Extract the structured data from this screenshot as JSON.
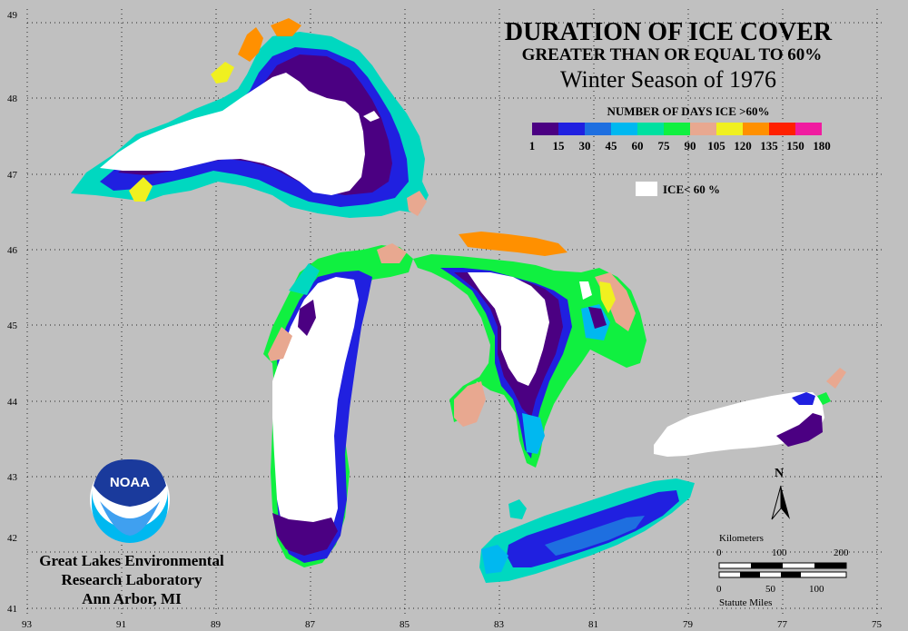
{
  "title": {
    "line1": "DURATION OF ICE COVER",
    "line2": "GREATER THAN OR EQUAL TO 60%",
    "line3": "Winter Season of 1976"
  },
  "legend": {
    "title": "NUMBER OF DAYS ICE >60%",
    "ticks": [
      "1",
      "15",
      "30",
      "45",
      "60",
      "75",
      "90",
      "105",
      "120",
      "135",
      "150",
      "180"
    ],
    "colors": [
      "#4b0082",
      "#2020e0",
      "#1e6fe0",
      "#00b8f0",
      "#00e0a0",
      "#10f040",
      "#e8a890",
      "#f0f020",
      "#ff9000",
      "#ff2000",
      "#f01ca0"
    ],
    "ice_label": "ICE< 60 %",
    "ice_color": "#ffffff"
  },
  "axes": {
    "lat_labels": [
      "49",
      "48",
      "47",
      "46",
      "45",
      "44",
      "43",
      "42",
      "41"
    ],
    "lon_labels": [
      "93",
      "91",
      "89",
      "87",
      "85",
      "83",
      "81",
      "79",
      "77",
      "75"
    ]
  },
  "organization": {
    "logo_text": "NOAA",
    "line1": "Great Lakes Environmental",
    "line2": "Research Laboratory",
    "line3": "Ann Arbor, MI"
  },
  "scale": {
    "km_title": "Kilometers",
    "km_ticks": [
      "0",
      "100",
      "200"
    ],
    "mi_ticks": [
      "0",
      "50",
      "100"
    ],
    "mi_title": "Statute Miles"
  },
  "north": "N",
  "colors": {
    "background": "#c0c0c0",
    "ice_free": "#ffffff"
  }
}
